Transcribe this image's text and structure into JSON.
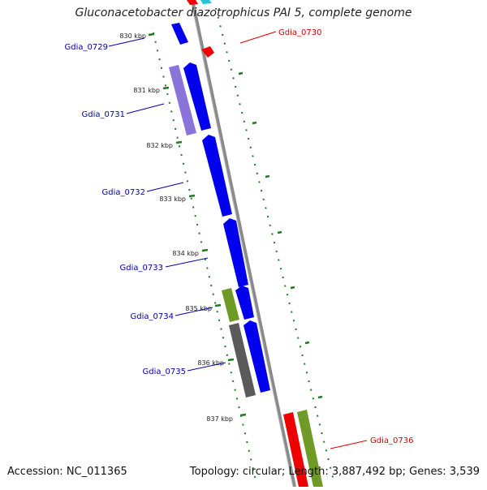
{
  "title": "Gluconacetobacter diazotrophicus PAI 5, complete genome",
  "footer": {
    "accession": "Accession: NC_011365",
    "topology": "Topology: circular; Length: 3,887,492 bp; Genes: 3,539"
  },
  "colors": {
    "backbone": "#8a8a8a",
    "tick": "#1f7a1f",
    "gene_blue": "#0000ee",
    "gene_lavender": "#8a73d9",
    "gene_olive": "#6f9a25",
    "gene_gray": "#5a5a5a",
    "gene_red": "#ee0000",
    "gene_cyan": "#22c4d8",
    "label_blue": "#0000aa",
    "label_red": "#dd0000",
    "kbp_text": "#222222"
  },
  "scale_labels": [
    "830 kbp",
    "831 kbp",
    "832 kbp",
    "833 kbp",
    "834 kbp",
    "835 kbp",
    "836 kbp",
    "837 kbp"
  ],
  "gene_labels": [
    {
      "text": "Gdia_0729",
      "color": "label_blue"
    },
    {
      "text": "Gdia_0730",
      "color": "label_red"
    },
    {
      "text": "Gdia_0731",
      "color": "label_blue"
    },
    {
      "text": "Gdia_0732",
      "color": "label_blue"
    },
    {
      "text": "Gdia_0733",
      "color": "label_blue"
    },
    {
      "text": "Gdia_0734",
      "color": "label_blue"
    },
    {
      "text": "Gdia_0735",
      "color": "label_blue"
    },
    {
      "text": "Gdia_0736",
      "color": "label_red"
    }
  ]
}
